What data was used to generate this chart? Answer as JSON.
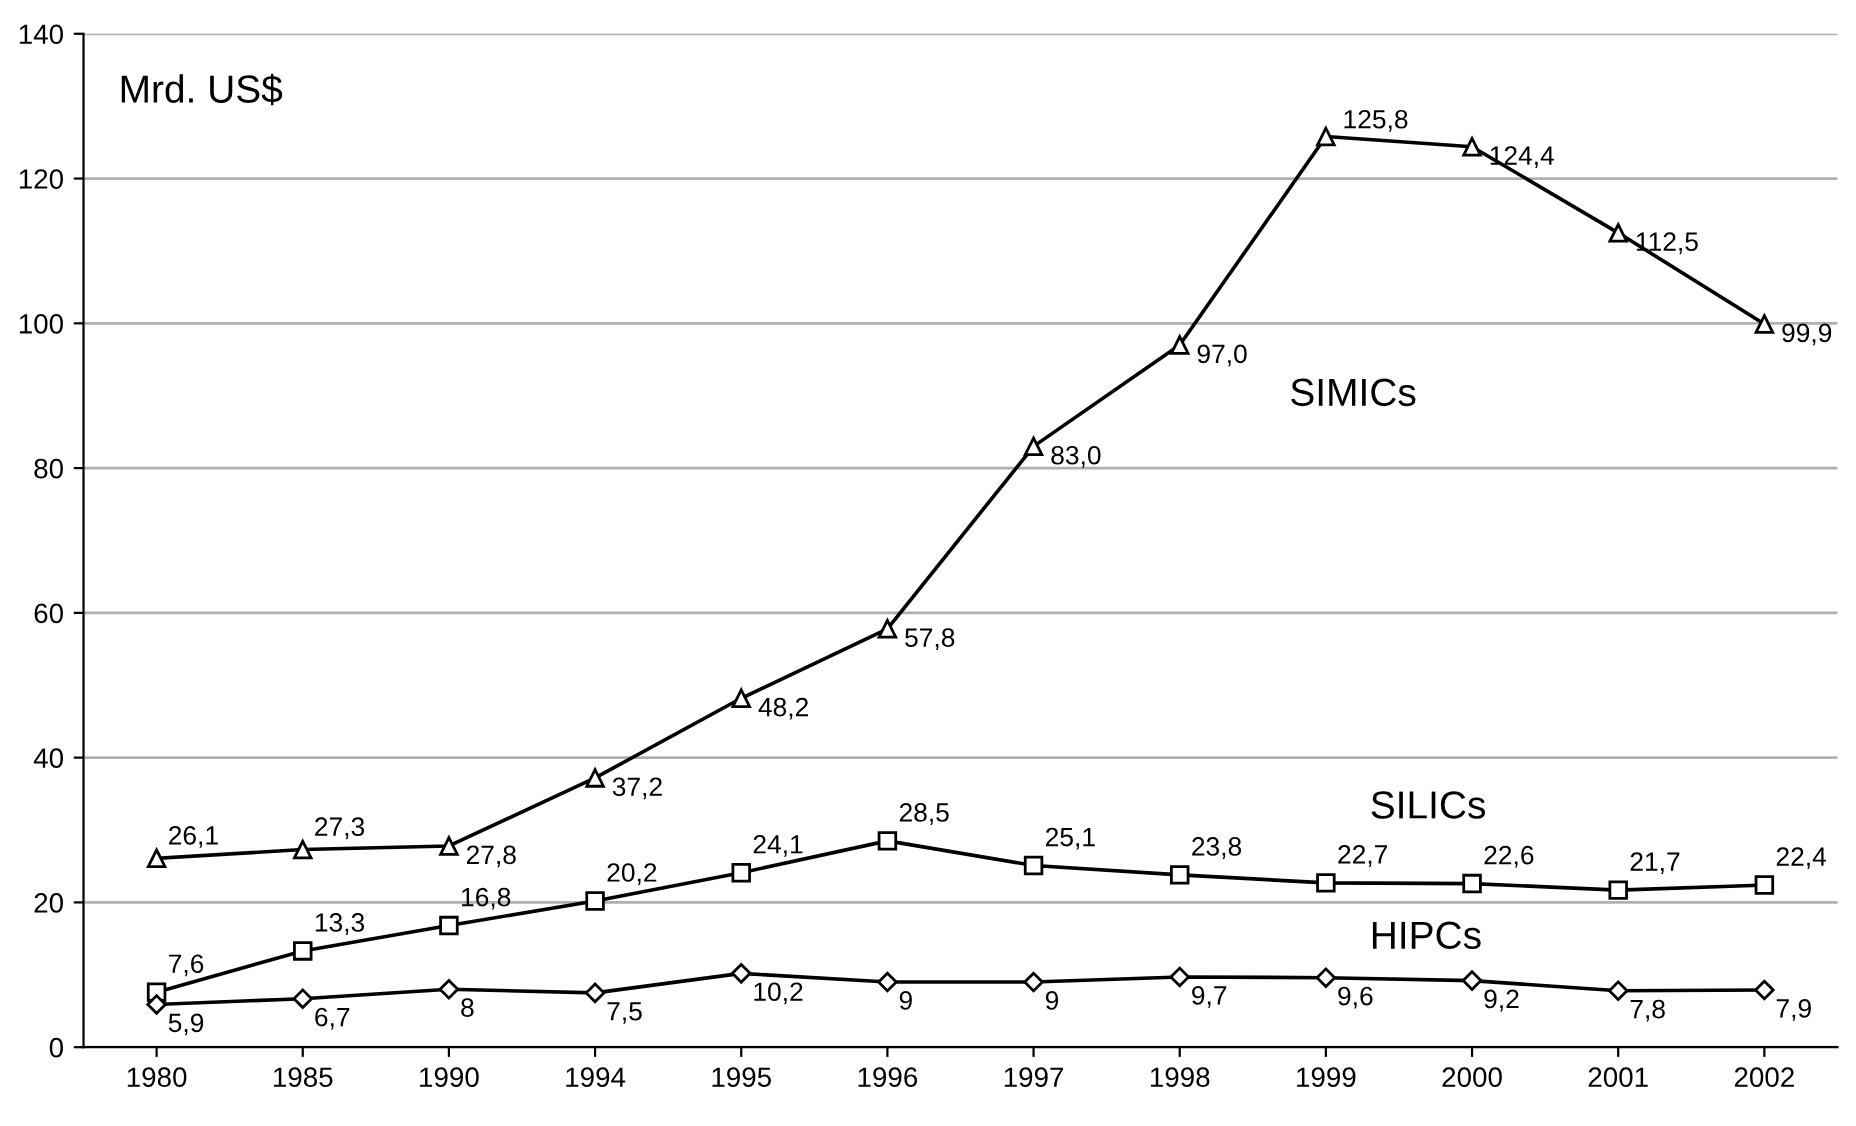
{
  "chart_data": {
    "type": "line",
    "ylabel": "Mrd. US$",
    "categories": [
      "1980",
      "1985",
      "1990",
      "1994",
      "1995",
      "1996",
      "1997",
      "1998",
      "1999",
      "2000",
      "2001",
      "2002"
    ],
    "series": [
      {
        "name": "SIMICs",
        "color": "#000000",
        "marker": "triangle",
        "values": [
          26.1,
          27.3,
          27.8,
          37.2,
          48.2,
          57.8,
          83.0,
          97.0,
          125.8,
          124.4,
          112.5,
          99.9
        ],
        "value_labels": [
          "26,1",
          "27,3",
          "27,8",
          "37,2",
          "48,2",
          "57,8",
          "83,0",
          "97,0",
          "125,8",
          "124,4",
          "112,5",
          "99,9"
        ]
      },
      {
        "name": "SILICs",
        "color": "#000000",
        "marker": "square",
        "values": [
          7.6,
          13.3,
          16.8,
          20.2,
          24.1,
          28.5,
          25.1,
          23.8,
          22.7,
          22.6,
          21.7,
          22.4
        ],
        "value_labels": [
          "7,6",
          "13,3",
          "16,8",
          "20,2",
          "24,1",
          "28,5",
          "25,1",
          "23,8",
          "22,7",
          "22,6",
          "21,7",
          "22,4"
        ]
      },
      {
        "name": "HIPCs",
        "color": "#000000",
        "marker": "diamond",
        "values": [
          5.9,
          6.7,
          8,
          7.5,
          10.2,
          9,
          9,
          9.7,
          9.6,
          9.2,
          7.8,
          7.9
        ],
        "value_labels": [
          "5,9",
          "6,7",
          "8",
          "7,5",
          "10,2",
          "9",
          "9",
          "9,7",
          "9,6",
          "9,2",
          "7,8",
          "7,9"
        ]
      }
    ],
    "ylim": [
      0,
      140
    ],
    "yticks": [
      0,
      20,
      40,
      60,
      80,
      100,
      120,
      140
    ],
    "grid": "y",
    "legend": false,
    "line_style": "solid"
  }
}
